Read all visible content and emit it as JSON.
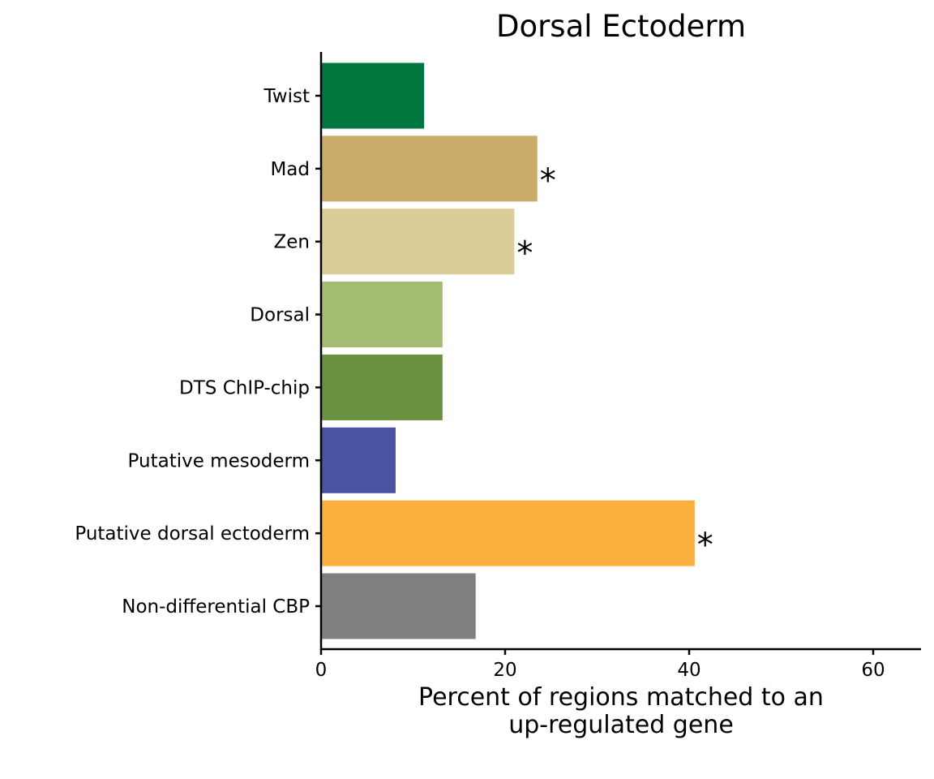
{
  "chart_data": {
    "type": "bar",
    "orientation": "horizontal",
    "title": "Dorsal Ectoderm",
    "xlabel": [
      "Percent of regions matched to an",
      "up-regulated gene"
    ],
    "ylabel": "",
    "xlim": [
      0,
      65
    ],
    "xticks": [
      "0",
      "20",
      "40",
      "60"
    ],
    "xtick_values": [
      0,
      20,
      40,
      60
    ],
    "grid": false,
    "categories": [
      "Twist",
      "Mad",
      "Zen",
      "Dorsal",
      "DTS ChIP-chip",
      "Putative mesoderm",
      "Putative dorsal ectoderm",
      "Non-differential CBP"
    ],
    "values": [
      11.2,
      23.5,
      21.0,
      13.2,
      13.2,
      8.1,
      40.6,
      16.8
    ],
    "significance": [
      "",
      "*",
      "*",
      "",
      "",
      "",
      "*",
      ""
    ],
    "colors": [
      "#037740",
      "#C8AA69",
      "#DBCD98",
      "#A4BC71",
      "#69913F",
      "#49539F",
      "#FBAF3C",
      "#808080"
    ]
  }
}
